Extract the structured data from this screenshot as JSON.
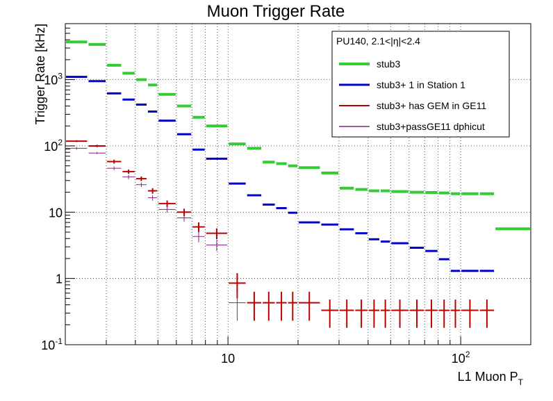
{
  "chart_data": {
    "type": "histogram-errorbar",
    "title": "Muon Trigger Rate",
    "xlabel_main": "L1 Muon P",
    "xlabel_sub": "T",
    "ylabel": "Trigger Rate [kHz]",
    "x_scale": "log",
    "y_scale": "log",
    "xlim": [
      2,
      200
    ],
    "ylim": [
      0.1,
      7000
    ],
    "grid": true,
    "x_tick_labels": [
      {
        "value": 10,
        "label": "10"
      },
      {
        "value": 100,
        "label": "10",
        "sup": "2"
      }
    ],
    "y_tick_labels": [
      {
        "value": 0.1,
        "label": "10",
        "sup": "-1"
      },
      {
        "value": 1,
        "label": "1"
      },
      {
        "value": 10,
        "label": "10"
      },
      {
        "value": 100,
        "label": "10",
        "sup": "2"
      },
      {
        "value": 1000,
        "label": "10",
        "sup": "3"
      }
    ],
    "legend": {
      "title": "PU140, 2.1<|η|<2.4",
      "placement": "top-right"
    },
    "series": [
      {
        "name": "stub3",
        "color": "#33cc33",
        "line_width": 4,
        "points": [
          {
            "x_lo": 2,
            "x_hi": 2.5,
            "y": 3700
          },
          {
            "x_lo": 2.5,
            "x_hi": 3,
            "y": 3400
          },
          {
            "x_lo": 3,
            "x_hi": 3.5,
            "y": 1650
          },
          {
            "x_lo": 3.5,
            "x_hi": 4,
            "y": 1250
          },
          {
            "x_lo": 4,
            "x_hi": 4.5,
            "y": 1000
          },
          {
            "x_lo": 4.5,
            "x_hi": 5,
            "y": 830
          },
          {
            "x_lo": 5,
            "x_hi": 6,
            "y": 600
          },
          {
            "x_lo": 6,
            "x_hi": 7,
            "y": 400
          },
          {
            "x_lo": 7,
            "x_hi": 8,
            "y": 270
          },
          {
            "x_lo": 8,
            "x_hi": 10,
            "y": 200
          },
          {
            "x_lo": 10,
            "x_hi": 12,
            "y": 107
          },
          {
            "x_lo": 12,
            "x_hi": 14,
            "y": 92
          },
          {
            "x_lo": 14,
            "x_hi": 16,
            "y": 57
          },
          {
            "x_lo": 16,
            "x_hi": 18,
            "y": 54
          },
          {
            "x_lo": 18,
            "x_hi": 20,
            "y": 50
          },
          {
            "x_lo": 20,
            "x_hi": 25,
            "y": 47
          },
          {
            "x_lo": 25,
            "x_hi": 30,
            "y": 39
          },
          {
            "x_lo": 30,
            "x_hi": 35,
            "y": 23
          },
          {
            "x_lo": 35,
            "x_hi": 40,
            "y": 22
          },
          {
            "x_lo": 40,
            "x_hi": 45,
            "y": 21
          },
          {
            "x_lo": 45,
            "x_hi": 50,
            "y": 21
          },
          {
            "x_lo": 50,
            "x_hi": 60,
            "y": 20.5
          },
          {
            "x_lo": 60,
            "x_hi": 70,
            "y": 20
          },
          {
            "x_lo": 70,
            "x_hi": 80,
            "y": 19.8
          },
          {
            "x_lo": 80,
            "x_hi": 90,
            "y": 19.5
          },
          {
            "x_lo": 90,
            "x_hi": 100,
            "y": 19
          },
          {
            "x_lo": 100,
            "x_hi": 120,
            "y": 19
          },
          {
            "x_lo": 120,
            "x_hi": 140,
            "y": 19
          },
          {
            "x_lo": 140,
            "x_hi": 200,
            "y": 5.6
          }
        ]
      },
      {
        "name": "stub3+ 1 in Station 1",
        "color": "#0000cc",
        "line_width": 3,
        "points": [
          {
            "x_lo": 2,
            "x_hi": 2.5,
            "y": 1100
          },
          {
            "x_lo": 2.5,
            "x_hi": 3,
            "y": 950
          },
          {
            "x_lo": 3,
            "x_hi": 3.5,
            "y": 620
          },
          {
            "x_lo": 3.5,
            "x_hi": 4,
            "y": 500
          },
          {
            "x_lo": 4,
            "x_hi": 4.5,
            "y": 420
          },
          {
            "x_lo": 4.5,
            "x_hi": 5,
            "y": 330
          },
          {
            "x_lo": 5,
            "x_hi": 6,
            "y": 240
          },
          {
            "x_lo": 6,
            "x_hi": 7,
            "y": 150
          },
          {
            "x_lo": 7,
            "x_hi": 8,
            "y": 88
          },
          {
            "x_lo": 8,
            "x_hi": 10,
            "y": 64
          },
          {
            "x_lo": 10,
            "x_hi": 12,
            "y": 27
          },
          {
            "x_lo": 12,
            "x_hi": 14,
            "y": 18
          },
          {
            "x_lo": 14,
            "x_hi": 16,
            "y": 13
          },
          {
            "x_lo": 16,
            "x_hi": 18,
            "y": 11.5
          },
          {
            "x_lo": 18,
            "x_hi": 20,
            "y": 9.8
          },
          {
            "x_lo": 20,
            "x_hi": 25,
            "y": 7
          },
          {
            "x_lo": 25,
            "x_hi": 30,
            "y": 6.5
          },
          {
            "x_lo": 30,
            "x_hi": 35,
            "y": 5.5
          },
          {
            "x_lo": 35,
            "x_hi": 40,
            "y": 4.8
          },
          {
            "x_lo": 40,
            "x_hi": 45,
            "y": 3.9
          },
          {
            "x_lo": 45,
            "x_hi": 50,
            "y": 3.6
          },
          {
            "x_lo": 50,
            "x_hi": 60,
            "y": 3.4
          },
          {
            "x_lo": 60,
            "x_hi": 70,
            "y": 2.9
          },
          {
            "x_lo": 70,
            "x_hi": 80,
            "y": 2.6
          },
          {
            "x_lo": 80,
            "x_hi": 90,
            "y": 1.95
          },
          {
            "x_lo": 90,
            "x_hi": 100,
            "y": 1.3
          },
          {
            "x_lo": 100,
            "x_hi": 120,
            "y": 1.3
          },
          {
            "x_lo": 120,
            "x_hi": 140,
            "y": 1.3
          }
        ]
      },
      {
        "name": "stub3+ has GEM in GE11",
        "color": "#bb0000",
        "line_width": 2,
        "points": [
          {
            "x_lo": 2,
            "x_hi": 2.5,
            "y": 118,
            "err": 4
          },
          {
            "x_lo": 2.5,
            "x_hi": 3,
            "y": 100,
            "err": 4
          },
          {
            "x_lo": 3,
            "x_hi": 3.5,
            "y": 58,
            "err": 4
          },
          {
            "x_lo": 3.5,
            "x_hi": 4,
            "y": 41,
            "err": 3
          },
          {
            "x_lo": 4,
            "x_hi": 4.5,
            "y": 32,
            "err": 2.5
          },
          {
            "x_lo": 4.5,
            "x_hi": 5,
            "y": 21,
            "err": 2
          },
          {
            "x_lo": 5,
            "x_hi": 6,
            "y": 13.5,
            "err": 1.5
          },
          {
            "x_lo": 6,
            "x_hi": 7,
            "y": 10,
            "err": 1.3
          },
          {
            "x_lo": 7,
            "x_hi": 8,
            "y": 6,
            "err": 1
          },
          {
            "x_lo": 8,
            "x_hi": 10,
            "y": 4.8,
            "err": 0.9
          },
          {
            "x_lo": 10,
            "x_hi": 12,
            "y": 0.85,
            "err": 0.35
          },
          {
            "x_lo": 12,
            "x_hi": 14,
            "y": 0.43,
            "err": 0.2
          },
          {
            "x_lo": 14,
            "x_hi": 16,
            "y": 0.43,
            "err": 0.2
          },
          {
            "x_lo": 16,
            "x_hi": 18,
            "y": 0.43,
            "err": 0.2
          },
          {
            "x_lo": 18,
            "x_hi": 20,
            "y": 0.43,
            "err": 0.2
          },
          {
            "x_lo": 20,
            "x_hi": 25,
            "y": 0.43,
            "err": 0.2
          },
          {
            "x_lo": 25,
            "x_hi": 30,
            "y": 0.33,
            "err": 0.15
          },
          {
            "x_lo": 30,
            "x_hi": 35,
            "y": 0.33,
            "err": 0.15
          },
          {
            "x_lo": 35,
            "x_hi": 40,
            "y": 0.33,
            "err": 0.15
          },
          {
            "x_lo": 40,
            "x_hi": 45,
            "y": 0.33,
            "err": 0.15
          },
          {
            "x_lo": 45,
            "x_hi": 50,
            "y": 0.33,
            "err": 0.15
          },
          {
            "x_lo": 50,
            "x_hi": 60,
            "y": 0.33,
            "err": 0.15
          },
          {
            "x_lo": 60,
            "x_hi": 70,
            "y": 0.33,
            "err": 0.15
          },
          {
            "x_lo": 70,
            "x_hi": 80,
            "y": 0.33,
            "err": 0.15
          },
          {
            "x_lo": 80,
            "x_hi": 90,
            "y": 0.33,
            "err": 0.15
          },
          {
            "x_lo": 90,
            "x_hi": 100,
            "y": 0.33,
            "err": 0.15
          },
          {
            "x_lo": 100,
            "x_hi": 120,
            "y": 0.33,
            "err": 0.15
          },
          {
            "x_lo": 120,
            "x_hi": 140,
            "y": 0.33,
            "err": 0.15
          }
        ]
      },
      {
        "name": "stub3+passGE11 dphicut",
        "color": "#882288",
        "line_width": 1,
        "points": [
          {
            "x_lo": 2,
            "x_hi": 2.5,
            "y": 92,
            "err": 4
          },
          {
            "x_lo": 2.5,
            "x_hi": 3,
            "y": 78,
            "err": 3
          },
          {
            "x_lo": 3,
            "x_hi": 3.5,
            "y": 46,
            "err": 3
          },
          {
            "x_lo": 3.5,
            "x_hi": 4,
            "y": 34,
            "err": 2.5
          },
          {
            "x_lo": 4,
            "x_hi": 4.5,
            "y": 26,
            "err": 2
          },
          {
            "x_lo": 4.5,
            "x_hi": 5,
            "y": 16.5,
            "err": 1.6
          },
          {
            "x_lo": 5,
            "x_hi": 6,
            "y": 11,
            "err": 1.2
          },
          {
            "x_lo": 6,
            "x_hi": 7,
            "y": 8.2,
            "err": 1
          },
          {
            "x_lo": 7,
            "x_hi": 8,
            "y": 4.3,
            "err": 0.8
          },
          {
            "x_lo": 8,
            "x_hi": 10,
            "y": 3.2,
            "err": 0.6
          },
          {
            "x_lo": 10,
            "x_hi": 12,
            "y": 0.43,
            "err": 0.2
          }
        ]
      }
    ]
  }
}
